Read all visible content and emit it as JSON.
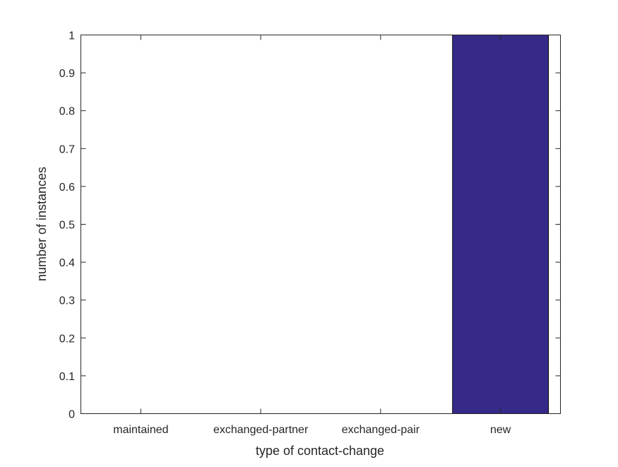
{
  "chart_data": {
    "type": "bar",
    "categories": [
      "maintained",
      "exchanged-partner",
      "exchanged-pair",
      "new"
    ],
    "values": [
      0,
      0,
      0,
      1
    ],
    "title": "",
    "xlabel": "type of contact-change",
    "ylabel": "number of instances",
    "ylim": [
      0,
      1
    ],
    "yticks": [
      "0",
      "0.1",
      "0.2",
      "0.3",
      "0.4",
      "0.5",
      "0.6",
      "0.7",
      "0.8",
      "0.9",
      "1"
    ],
    "grid": false,
    "bar_color": "#352a87",
    "axis_color": "#262626"
  }
}
